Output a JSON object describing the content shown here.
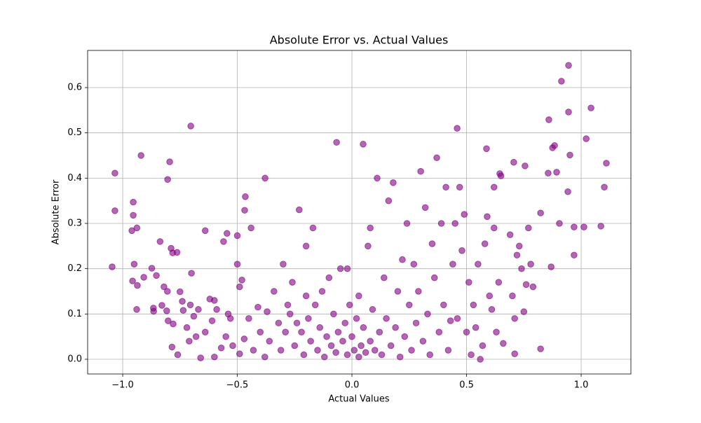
{
  "chart_data": {
    "type": "scatter",
    "title": "Absolute Error vs. Actual Values",
    "x_label": "Actual Values",
    "y_label": "Absolute Error",
    "color": "#800080",
    "alpha": 0.6,
    "grid": true,
    "xlim": [
      -1.153,
      1.217
    ],
    "ylim": [
      -0.0325,
      0.682
    ],
    "xticks": [
      {
        "value": -1,
        "label": "−1.0"
      },
      {
        "value": -0.5,
        "label": "−0.5"
      },
      {
        "value": 0,
        "label": "0.0"
      },
      0.5,
      {
        "value": 1,
        "label": "1.0"
      }
    ],
    "yticks": [
      {
        "value": 0,
        "label": "0.0"
      },
      0.1,
      0.2,
      0.3,
      0.4,
      0.5,
      0.6
    ],
    "x": [
      0.945,
      0.914,
      1.043,
      0.945,
      0.859,
      1.022,
      0.884,
      0.875,
      0.951,
      1.11,
      0.893,
      0.856,
      1.101,
      0.942,
      0.905,
      0.969,
      1.012,
      1.086,
      0.823,
      0.869,
      0.969,
      0.823,
      -0.703,
      -0.92,
      -0.795,
      -1.034,
      -0.804,
      -0.379,
      -0.954,
      -1.034,
      -0.954,
      -0.465,
      -0.468,
      -0.067,
      0.049,
      0.459,
      0.587,
      0.706,
      0.755,
      0.645,
      -1.046,
      -0.96,
      -0.938,
      -0.95,
      -0.957,
      -0.936,
      -0.908,
      -0.873,
      -0.837,
      -0.853,
      -0.939,
      -0.866,
      -0.82,
      -0.805,
      -0.782,
      -0.789,
      -0.763,
      -0.808,
      -0.829,
      -0.75,
      -0.74,
      -0.7,
      -0.78,
      -0.802,
      -0.736,
      -0.705,
      -0.69,
      -0.67,
      -0.64,
      -0.62,
      -0.6,
      -0.56,
      -0.545,
      -0.5,
      -0.48,
      -0.59,
      -0.54,
      -0.5,
      -0.49,
      -0.44,
      -0.865,
      -0.785,
      -0.76,
      -0.72,
      -0.71,
      -0.68,
      -0.66,
      -0.64,
      -0.61,
      -0.6,
      -0.57,
      -0.55,
      -0.53,
      -0.52,
      -0.49,
      -0.47,
      -0.45,
      -0.43,
      -0.41,
      -0.4,
      -0.38,
      -0.37,
      -0.36,
      -0.34,
      -0.32,
      -0.31,
      -0.3,
      -0.29,
      -0.28,
      -0.27,
      -0.26,
      -0.25,
      -0.24,
      -0.23,
      -0.22,
      -0.21,
      -0.2,
      -0.19,
      -0.18,
      -0.17,
      -0.16,
      -0.15,
      -0.14,
      -0.13,
      -0.12,
      -0.11,
      -0.1,
      -0.09,
      -0.08,
      -0.07,
      -0.06,
      -0.05,
      -0.04,
      -0.03,
      -0.02,
      -0.01,
      0,
      0.01,
      0.02,
      0.03,
      0.04,
      0.05,
      0.06,
      0.07,
      0.08,
      0.09,
      0.1,
      0.11,
      0.12,
      0.13,
      0.14,
      0.15,
      0.16,
      0.17,
      0.18,
      0.19,
      0.2,
      0.21,
      0.22,
      0.23,
      0.24,
      0.25,
      0.26,
      0.27,
      0.28,
      0.29,
      0.3,
      0.31,
      0.32,
      0.33,
      0.34,
      0.35,
      0.36,
      0.37,
      0.38,
      0.39,
      0.4,
      0.41,
      0.42,
      0.43,
      0.44,
      0.45,
      0.46,
      0.47,
      0.48,
      0.49,
      0.5,
      0.51,
      0.52,
      0.53,
      0.54,
      0.55,
      0.56,
      0.57,
      0.58,
      0.59,
      0.6,
      0.61,
      0.62,
      0.63,
      0.64,
      0.65,
      0.66,
      0.69,
      0.7,
      0.71,
      0.72,
      0.73,
      0.74,
      0.75,
      0.76,
      0.77,
      0.78,
      0.79,
      0.71,
      0.62,
      -0.02,
      0.03,
      0.08,
      -0.2
    ],
    "values": [
      0.649,
      0.614,
      0.555,
      0.546,
      0.529,
      0.487,
      0.472,
      0.467,
      0.451,
      0.433,
      0.413,
      0.411,
      0.38,
      0.37,
      0.3,
      0.292,
      0.292,
      0.294,
      0.323,
      0.204,
      0.23,
      0.023,
      0.515,
      0.45,
      0.436,
      0.411,
      0.397,
      0.4,
      0.347,
      0.328,
      0.318,
      0.359,
      0.329,
      0.479,
      0.475,
      0.51,
      0.465,
      0.435,
      0.427,
      0.41,
      0.204,
      0.284,
      0.29,
      0.21,
      0.173,
      0.163,
      0.181,
      0.201,
      0.26,
      0.185,
      0.11,
      0.113,
      0.16,
      0.15,
      0.235,
      0.245,
      0.236,
      0.107,
      0.119,
      0.149,
      0.128,
      0.19,
      0.078,
      0.085,
      0.108,
      0.12,
      0.095,
      0.11,
      0.284,
      0.133,
      0.13,
      0.26,
      0.278,
      0.273,
      0.175,
      0.11,
      0.1,
      0.21,
      0.16,
      0.29,
      0.106,
      0.027,
      0.01,
      0.07,
      0.04,
      0.05,
      0.003,
      0.06,
      0.085,
      0.005,
      0.025,
      0.05,
      0.09,
      0.03,
      0.012,
      0.045,
      0.09,
      0.02,
      0.115,
      0.06,
      0.005,
      0.105,
      0.04,
      0.15,
      0.08,
      0.02,
      0.21,
      0.06,
      0.12,
      0.1,
      0.17,
      0.03,
      0.08,
      0.33,
      0.06,
      0.01,
      0.14,
      0.09,
      0.04,
      0.29,
      0.12,
      0.02,
      0.07,
      0.15,
      0.005,
      0.05,
      0.18,
      0.03,
      0.1,
      0.015,
      0.06,
      0.2,
      0.04,
      0.08,
      0.01,
      0.12,
      0.05,
      0.02,
      0.09,
      0.005,
      0.03,
      0.07,
      0.015,
      0.25,
      0.04,
      0.11,
      0.02,
      0.4,
      0.06,
      0.01,
      0.18,
      0.09,
      0.35,
      0.03,
      0.39,
      0.07,
      0.15,
      0.005,
      0.22,
      0.05,
      0.3,
      0.12,
      0.02,
      0.21,
      0.08,
      0.15,
      0.415,
      0.04,
      0.335,
      0.1,
      0.01,
      0.255,
      0.18,
      0.445,
      0.06,
      0.3,
      0.12,
      0.38,
      0.02,
      0.085,
      0.21,
      0.3,
      0.09,
      0.38,
      0.24,
      0.32,
      0.06,
      0.17,
      0.01,
      0.12,
      0.07,
      0.21,
      0,
      0.03,
      0.255,
      0.315,
      0.14,
      0.11,
      0.29,
      0.06,
      0.17,
      0.405,
      0.035,
      0.275,
      0.14,
      0.09,
      0.23,
      0.25,
      0.2,
      0.105,
      0.165,
      0.29,
      0.21,
      0.16,
      0.012,
      0.38,
      0.2,
      0.14,
      0.29,
      0.25
    ]
  }
}
